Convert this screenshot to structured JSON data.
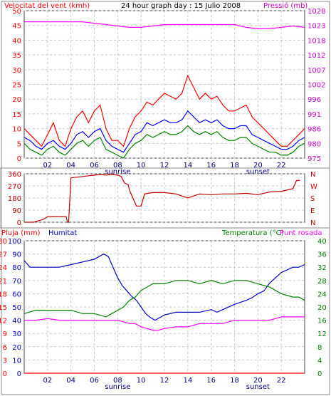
{
  "chart_data": [
    {
      "type": "line",
      "title": "24 hour graph day : 15 Julio 2008",
      "ylabel_left": "Velocitat del vent (kmh)",
      "ylabel_right": "Pressió (mb)",
      "xlim": [
        0,
        24
      ],
      "x_ticks": [
        "02",
        "04",
        "06",
        "08",
        "10",
        "12",
        "14",
        "16",
        "18",
        "20",
        "22"
      ],
      "x_tick_values": [
        2,
        4,
        6,
        8,
        10,
        12,
        14,
        16,
        18,
        20,
        22
      ],
      "x_annotations": [
        {
          "label": "sunrise",
          "x": 8
        },
        {
          "label": "sunset",
          "x": 20
        }
      ],
      "ylim_left": [
        0,
        50
      ],
      "y_ticks_left": [
        "0",
        "5",
        "10",
        "15",
        "20",
        "25",
        "30",
        "35",
        "40",
        "45",
        "50"
      ],
      "ylim_right": [
        975,
        1028
      ],
      "y_ticks_right": [
        "975",
        "980",
        "986",
        "991",
        "996",
        "1002",
        "1007",
        "1012",
        "1018",
        "1023",
        "1028"
      ],
      "grid": true,
      "series": [
        {
          "name": "gust",
          "color": "#ff0000",
          "axis": "left",
          "x": [
            0,
            0.5,
            1,
            1.5,
            2,
            2.5,
            3,
            3.5,
            4,
            4.5,
            5,
            5.5,
            6,
            6.5,
            7,
            7.5,
            8,
            8.5,
            9,
            9.5,
            10,
            10.5,
            11,
            11.5,
            12,
            12.5,
            13,
            13.5,
            14,
            14.5,
            15,
            15.5,
            16,
            16.5,
            17,
            17.5,
            18,
            18.5,
            19,
            19.5,
            20,
            20.5,
            21,
            21.5,
            22,
            22.5,
            23,
            23.5,
            24
          ],
          "y": [
            10,
            8,
            6,
            4,
            8,
            12,
            6,
            4,
            10,
            14,
            16,
            12,
            16,
            18,
            10,
            6,
            6,
            4,
            10,
            14,
            16,
            19,
            18,
            20,
            22,
            21,
            20,
            22,
            28,
            24,
            20,
            22,
            20,
            21,
            18,
            16,
            16,
            17,
            18,
            14,
            12,
            10,
            8,
            6,
            4,
            4,
            6,
            8,
            10
          ]
        },
        {
          "name": "pressure",
          "color": "#ff00ff",
          "axis": "right",
          "x": [
            0,
            1,
            2,
            3,
            4,
            5,
            6,
            7,
            8,
            9,
            10,
            11,
            12,
            13,
            14,
            15,
            16,
            17,
            18,
            19,
            20,
            21,
            22,
            23,
            24
          ],
          "y": [
            1024,
            1024,
            1024,
            1024,
            1024,
            1024,
            1023.5,
            1023,
            1022.5,
            1022,
            1022,
            1022.5,
            1023,
            1023,
            1023,
            1023,
            1023,
            1023,
            1023,
            1022,
            1021.5,
            1021.5,
            1022,
            1022.5,
            1022
          ]
        },
        {
          "name": "speed-avg",
          "color": "#0000ff",
          "axis": "left",
          "x": [
            0,
            0.5,
            1,
            1.5,
            2,
            2.5,
            3,
            3.5,
            4,
            4.5,
            5,
            5.5,
            6,
            6.5,
            7,
            7.5,
            8,
            8.5,
            9,
            9.5,
            10,
            10.5,
            11,
            11.5,
            12,
            12.5,
            13,
            13.5,
            14,
            14.5,
            15,
            15.5,
            16,
            16.5,
            17,
            17.5,
            18,
            18.5,
            19,
            19.5,
            20,
            20.5,
            21,
            21.5,
            22,
            22.5,
            23,
            23.5,
            24
          ],
          "y": [
            7,
            6,
            4,
            3,
            5,
            6,
            4,
            3,
            5,
            8,
            9,
            7,
            9,
            10,
            6,
            4,
            3,
            2,
            5,
            8,
            9,
            12,
            11,
            12,
            13,
            12,
            12,
            13,
            16,
            14,
            12,
            13,
            12,
            13,
            11,
            10,
            10,
            11,
            11,
            8,
            7,
            6,
            5,
            4,
            3,
            3,
            4,
            6,
            7
          ]
        },
        {
          "name": "speed",
          "color": "#008000",
          "axis": "left",
          "x": [
            0,
            0.5,
            1,
            1.5,
            2,
            2.5,
            3,
            3.5,
            4,
            4.5,
            5,
            5.5,
            6,
            6.5,
            7,
            7.5,
            8,
            8.5,
            9,
            9.5,
            10,
            10.5,
            11,
            11.5,
            12,
            12.5,
            13,
            13.5,
            14,
            14.5,
            15,
            15.5,
            16,
            16.5,
            17,
            17.5,
            18,
            18.5,
            19,
            19.5,
            20,
            20.5,
            21,
            21.5,
            22,
            22.5,
            23,
            23.5,
            24
          ],
          "y": [
            5,
            3,
            2,
            1,
            3,
            4,
            2,
            1,
            3,
            5,
            6,
            4,
            6,
            7,
            3,
            2,
            1,
            0,
            3,
            5,
            6,
            8,
            7,
            8,
            9,
            8,
            8,
            9,
            11,
            9,
            8,
            9,
            8,
            9,
            7,
            6,
            6,
            7,
            7,
            5,
            4,
            3,
            2,
            2,
            1,
            1,
            2,
            4,
            5
          ]
        }
      ]
    },
    {
      "type": "line",
      "ylabel_left": "",
      "xlim": [
        0,
        24
      ],
      "ylim_left": [
        0,
        360
      ],
      "y_ticks_left": [
        "0",
        "90",
        "180",
        "270",
        "360"
      ],
      "y_ticks_right": [
        "N",
        "E",
        "S",
        "W",
        "N"
      ],
      "grid": true,
      "series": [
        {
          "name": "direction",
          "color": "#c00000",
          "x": [
            0,
            0.8,
            1.2,
            1.6,
            2,
            2.4,
            2.8,
            3.2,
            3.6,
            3.7,
            3.8,
            4,
            5,
            6,
            6.5,
            7,
            7.5,
            8,
            8.3,
            8.6,
            8.9,
            9,
            9.3,
            9.6,
            10,
            10.3,
            11,
            12,
            13,
            14,
            15,
            16,
            17,
            18,
            19,
            20,
            21,
            22,
            23,
            23.3,
            23.6
          ],
          "y": [
            0,
            0,
            10,
            20,
            40,
            40,
            40,
            40,
            40,
            0,
            0,
            330,
            340,
            350,
            355,
            350,
            355,
            350,
            340,
            290,
            280,
            240,
            180,
            120,
            120,
            210,
            220,
            220,
            210,
            180,
            210,
            205,
            210,
            210,
            215,
            205,
            225,
            230,
            250,
            310,
            310
          ]
        }
      ]
    },
    {
      "type": "line",
      "ylabel_left": "Pluja (mm)",
      "ylabel_left2": "Humitat",
      "ylabel_right": "Temperatura (°C)",
      "ylabel_right2": "Punt rosada",
      "xlim": [
        0,
        24
      ],
      "x_ticks": [
        "02",
        "04",
        "06",
        "08",
        "10",
        "12",
        "14",
        "16",
        "18",
        "20",
        "22"
      ],
      "x_tick_values": [
        2,
        4,
        6,
        8,
        10,
        12,
        14,
        16,
        18,
        20,
        22
      ],
      "x_annotations": [
        {
          "label": "sunrise",
          "x": 8
        },
        {
          "label": "sunset",
          "x": 20
        }
      ],
      "ylim_rain": [
        0,
        30
      ],
      "y_ticks_rain": [
        "0",
        "3",
        "6",
        "9",
        "12",
        "15",
        "18",
        "21",
        "24",
        "27",
        "30"
      ],
      "ylim_humidity": [
        0,
        100
      ],
      "y_ticks_humidity": [
        "0",
        "10",
        "20",
        "30",
        "40",
        "50",
        "60",
        "70",
        "80",
        "90",
        "100"
      ],
      "ylim_temp": [
        0,
        40
      ],
      "y_ticks_temp": [
        "0",
        "4",
        "8",
        "12",
        "16",
        "20",
        "24",
        "28",
        "32",
        "36",
        "40"
      ],
      "grid": true,
      "series": [
        {
          "name": "rain",
          "color": "#ff0000",
          "axis": "rain",
          "x": [
            0,
            24
          ],
          "y": [
            0,
            0
          ]
        },
        {
          "name": "humidity",
          "color": "#0000c0",
          "axis": "humidity",
          "x": [
            0,
            0.5,
            1,
            2,
            3,
            4,
            5,
            6,
            6.8,
            7.2,
            7.6,
            8,
            8.4,
            8.8,
            9.2,
            9.6,
            10,
            10.4,
            10.8,
            11.2,
            11.6,
            12,
            13,
            14,
            15,
            16,
            16.5,
            17,
            18,
            19,
            19.5,
            20,
            20.5,
            21,
            21.5,
            22,
            22.5,
            23,
            23.5,
            24
          ],
          "y": [
            85,
            80,
            80,
            80,
            80,
            82,
            84,
            86,
            90,
            88,
            80,
            72,
            66,
            62,
            58,
            55,
            50,
            45,
            42,
            40,
            42,
            44,
            46,
            46,
            46,
            48,
            46,
            48,
            52,
            55,
            57,
            60,
            62,
            68,
            72,
            76,
            78,
            80,
            80,
            82
          ]
        },
        {
          "name": "temperature",
          "color": "#008000",
          "axis": "temp",
          "x": [
            0,
            1,
            2,
            3,
            4,
            5,
            6,
            7,
            7.5,
            8,
            8.5,
            9,
            9.5,
            10,
            10.5,
            11,
            12,
            13,
            14,
            15,
            16,
            17,
            18,
            19,
            20,
            21,
            22,
            23,
            23.5,
            24
          ],
          "y": [
            18,
            19,
            19,
            19,
            19,
            18,
            18,
            17,
            18,
            19,
            20,
            22,
            23,
            25,
            26,
            27,
            27,
            28,
            28,
            27,
            28,
            27,
            28,
            28,
            27,
            26,
            24,
            23,
            23,
            22
          ]
        },
        {
          "name": "dewpoint",
          "color": "#ff00ff",
          "axis": "temp",
          "x": [
            0,
            1,
            2,
            3,
            4,
            5,
            6,
            7,
            8,
            9,
            9.5,
            10,
            10.5,
            11,
            11.5,
            12,
            13,
            14,
            15,
            16,
            17,
            18,
            19,
            20,
            21,
            22,
            23,
            23.5,
            24
          ],
          "y": [
            16,
            16,
            16.5,
            16,
            16,
            16,
            16,
            16,
            16,
            15,
            15,
            14,
            13.5,
            13,
            13,
            13.5,
            14,
            14,
            15,
            15,
            15,
            16,
            16,
            16,
            16,
            17,
            17,
            17,
            17
          ]
        }
      ]
    }
  ],
  "colors": {
    "axis_red": "#ff0000",
    "axis_magenta": "#cc00cc",
    "axis_blue": "#0000c0",
    "axis_green": "#008000",
    "grid": "#c8c8c8"
  }
}
